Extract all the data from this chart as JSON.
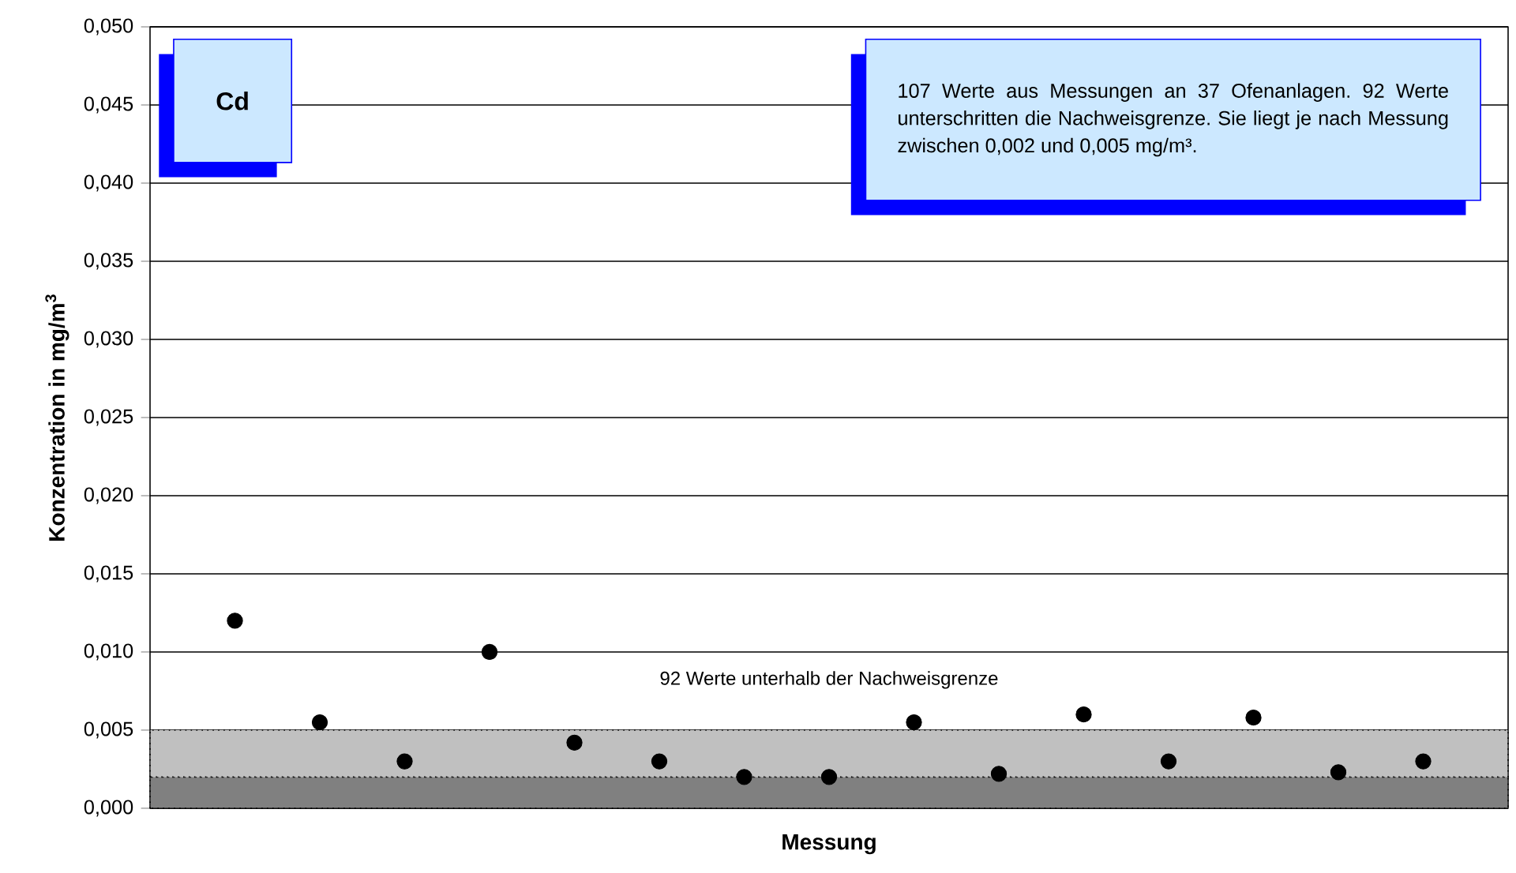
{
  "chart_data": {
    "type": "scatter",
    "xlabel": "Messung",
    "ylabel": "Konzentration in mg/m$^{3}$",
    "categories": [
      null,
      null,
      null,
      null,
      null,
      null,
      null,
      null,
      null,
      null,
      null,
      null,
      null,
      null,
      null
    ],
    "series": [
      {
        "color": "#000000",
        "values": [
          0.012,
          0.0055,
          0.003,
          0.01,
          0.0042,
          0.003,
          0.002,
          0.002,
          0.0055,
          0.0022,
          0.006,
          0.003,
          0.0058,
          0.0023,
          0.003
        ]
      }
    ],
    "ylim": [
      0,
      0.05
    ],
    "yticks": [
      {
        "value": 0,
        "label": "0,000"
      },
      {
        "value": 0.005,
        "label": "0,005"
      },
      {
        "value": 0.01,
        "label": "0,010"
      },
      {
        "value": 0.015,
        "label": "0,015"
      },
      {
        "value": 0.02,
        "label": "0,020"
      },
      {
        "value": 0.025,
        "label": "0,025"
      },
      {
        "value": 0.03,
        "label": "0,030"
      },
      {
        "value": 0.035,
        "label": "0,035"
      },
      {
        "value": 0.04,
        "label": "0,040"
      },
      {
        "value": 0.045,
        "label": "0,045"
      },
      {
        "value": 0.05,
        "label": "0,050"
      }
    ],
    "bands": [
      {
        "axis": "y",
        "from": 0,
        "to": 0.002,
        "color": "#808080"
      },
      {
        "axis": "y",
        "from": 0.002,
        "to": 0.005,
        "color": "#c0c0c0",
        "label": "92 Werte unterhalb der Nachweisgrenze"
      }
    ],
    "annotations": [
      "Cd",
      "107 Werte aus Messungen an 37 Ofenanlagen. 92 Werte unterschritten die Nachweisgrenze. Sie liegt je nach Messung zwischen 0,002 und 0,005 mg/m³."
    ],
    "grid": "y",
    "marker": "circle",
    "tick_labels": "y"
  }
}
